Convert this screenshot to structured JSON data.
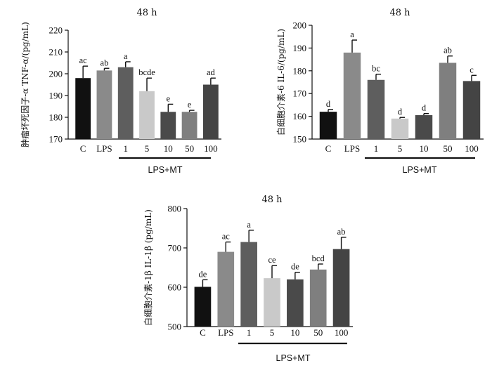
{
  "chart_data": [
    {
      "type": "bar",
      "title": "48 h",
      "ylabel": "肿瘤坏死因子-α TNF-α/(pg/mL)",
      "group_label": "LPS+MT",
      "categories": [
        "C",
        "LPS",
        "1",
        "5",
        "10",
        "50",
        "100"
      ],
      "values": [
        198,
        201.5,
        203,
        192,
        182.5,
        182.5,
        195
      ],
      "errors": [
        5.5,
        1,
        2.5,
        6,
        3.5,
        0.7,
        3
      ],
      "significance": [
        "ac",
        "ab",
        "a",
        "bcde",
        "e",
        "e",
        "ad"
      ],
      "colors": [
        "#111111",
        "#8a8a8a",
        "#5e5e5e",
        "#c9c9c9",
        "#4a4a4a",
        "#7f7f7f",
        "#444444"
      ],
      "ylim": [
        170,
        220
      ],
      "yticks": [
        170,
        180,
        190,
        200,
        210,
        220
      ]
    },
    {
      "type": "bar",
      "title": "48 h",
      "ylabel": "白细胞介素-6 IL-6/(pg/mL)",
      "group_label": "LPS+MT",
      "categories": [
        "C",
        "LPS",
        "1",
        "5",
        "10",
        "50",
        "100"
      ],
      "values": [
        162,
        188,
        176,
        159,
        160.5,
        183.5,
        175.5
      ],
      "errors": [
        1,
        5.5,
        2.5,
        0.5,
        0.7,
        3,
        2.5
      ],
      "significance": [
        "d",
        "a",
        "bc",
        "d",
        "d",
        "ab",
        "c"
      ],
      "colors": [
        "#111111",
        "#8a8a8a",
        "#5e5e5e",
        "#c9c9c9",
        "#4a4a4a",
        "#7f7f7f",
        "#444444"
      ],
      "ylim": [
        150,
        200
      ],
      "yticks": [
        150,
        160,
        170,
        180,
        190,
        200
      ]
    },
    {
      "type": "bar",
      "title": "48 h",
      "ylabel": "白细胞介素-1β IL-1β (pg/mL)",
      "group_label": "LPS+MT",
      "categories": [
        "C",
        "LPS",
        "1",
        "5",
        "10",
        "50",
        "100"
      ],
      "values": [
        601,
        690,
        715,
        623,
        620,
        645,
        697
      ],
      "errors": [
        18,
        25,
        30,
        32,
        18,
        14,
        30
      ],
      "significance": [
        "de",
        "ac",
        "a",
        "ce",
        "de",
        "bcd",
        "ab"
      ],
      "colors": [
        "#111111",
        "#8a8a8a",
        "#5e5e5e",
        "#c9c9c9",
        "#4a4a4a",
        "#7f7f7f",
        "#444444"
      ],
      "ylim": [
        500,
        800
      ],
      "yticks": [
        500,
        600,
        700,
        800
      ]
    }
  ]
}
